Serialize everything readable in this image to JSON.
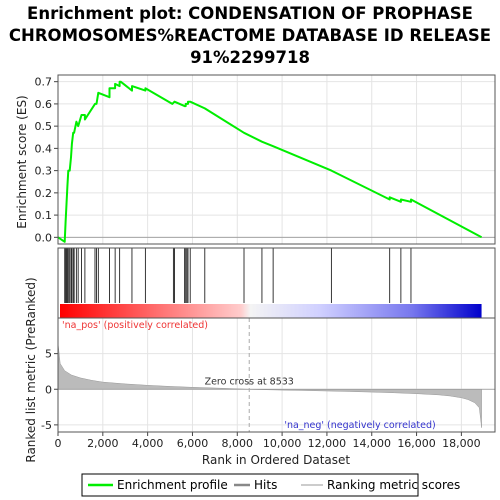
{
  "chart_data": {
    "type": "line",
    "title_lines": [
      "Enrichment plot: CONDENSATION OF PROPHASE",
      "CHROMOSOMES%REACTOME DATABASE ID RELEASE",
      "91%2299718"
    ],
    "ylabel_es": "Enrichment score (ES)",
    "ylabel_rank": "Ranked list metric (PreRanked)",
    "xlabel": "Rank in Ordered Dataset",
    "xlim": [
      0,
      19500
    ],
    "ylim_es": [
      -0.03,
      0.73
    ],
    "ylim_rank": [
      -6,
      10
    ],
    "x_ticks": [
      0,
      2000,
      4000,
      6000,
      8000,
      10000,
      12000,
      14000,
      16000,
      18000
    ],
    "x_tick_labels": [
      "0",
      "2,000",
      "4,000",
      "6,000",
      "8,000",
      "10,000",
      "12,000",
      "14,000",
      "16,000",
      "18,000"
    ],
    "es_ticks": [
      0.0,
      0.1,
      0.2,
      0.3,
      0.4,
      0.5,
      0.6,
      0.7
    ],
    "es_tick_labels": [
      "0.0",
      "0.1",
      "0.2",
      "0.3",
      "0.4",
      "0.5",
      "0.6",
      "0.7"
    ],
    "rank_ticks": [
      -5,
      0,
      5
    ],
    "rank_tick_labels": [
      "-5",
      "0",
      "5"
    ],
    "series": [
      {
        "name": "Enrichment profile",
        "color": "#00ee00",
        "x": [
          0,
          300,
          340,
          340,
          380,
          380,
          420,
          420,
          460,
          460,
          520,
          520,
          580,
          580,
          620,
          620,
          680,
          680,
          720,
          720,
          820,
          820,
          900,
          900,
          1050,
          1050,
          1200,
          1200,
          1650,
          1650,
          1720,
          1720,
          1800,
          1800,
          2300,
          2300,
          2550,
          2550,
          2750,
          2750,
          2800,
          3300,
          3300,
          3900,
          3900,
          5100,
          5200,
          5200,
          5650,
          5700,
          5700,
          5750,
          5750,
          5800,
          5800,
          5900,
          5900,
          6550,
          6550,
          8300,
          8300,
          9100,
          9100,
          9600,
          9600,
          12200,
          12200,
          14800,
          14800,
          15300,
          15300,
          15750,
          15750,
          18900
        ],
        "y": [
          0.0,
          -0.02,
          0.07,
          0.07,
          0.15,
          0.15,
          0.23,
          0.23,
          0.3,
          0.3,
          0.3,
          0.3,
          0.36,
          0.36,
          0.42,
          0.42,
          0.47,
          0.47,
          0.47,
          0.47,
          0.52,
          0.52,
          0.5,
          0.5,
          0.55,
          0.55,
          0.55,
          0.53,
          0.6,
          0.6,
          0.6,
          0.6,
          0.65,
          0.65,
          0.63,
          0.67,
          0.67,
          0.69,
          0.68,
          0.7,
          0.7,
          0.66,
          0.68,
          0.66,
          0.67,
          0.6,
          0.61,
          0.61,
          0.59,
          0.59,
          0.6,
          0.6,
          0.6,
          0.6,
          0.61,
          0.61,
          0.61,
          0.58,
          0.58,
          0.47,
          0.47,
          0.43,
          0.43,
          0.41,
          0.41,
          0.3,
          0.3,
          0.17,
          0.18,
          0.16,
          0.17,
          0.16,
          0.17,
          0.0
        ]
      }
    ],
    "hits": [
      300,
      340,
      380,
      420,
      460,
      520,
      580,
      620,
      680,
      720,
      820,
      900,
      1050,
      1200,
      1650,
      1720,
      1800,
      2300,
      2550,
      2750,
      3300,
      3900,
      5150,
      5200,
      5650,
      5700,
      5750,
      5800,
      5900,
      6550,
      8300,
      9100,
      9600,
      12200,
      14800,
      15300,
      15750
    ],
    "ranked_metric": {
      "x": [
        0,
        100,
        300,
        600,
        1000,
        1500,
        2000,
        3000,
        4000,
        5000,
        6000,
        7000,
        8000,
        8533,
        9000,
        10000,
        11000,
        12000,
        13000,
        14000,
        15000,
        16000,
        17000,
        17500,
        18000,
        18300,
        18600,
        18800,
        18900
      ],
      "y": [
        6.5,
        3.6,
        2.6,
        2.0,
        1.6,
        1.25,
        1.0,
        0.75,
        0.55,
        0.4,
        0.28,
        0.17,
        0.07,
        0.0,
        -0.05,
        -0.12,
        -0.18,
        -0.25,
        -0.32,
        -0.4,
        -0.5,
        -0.62,
        -0.8,
        -0.95,
        -1.2,
        -1.45,
        -1.9,
        -2.6,
        -5.4
      ],
      "fill": "#bbbbbb"
    },
    "zero_cross_label": "Zero cross at 8533",
    "zero_cross_x": 8533,
    "pos_label": "'na_pos' (positively correlated)",
    "neg_label": "'na_neg' (negatively correlated)",
    "pos_color": "#ff0000",
    "neg_color": "#0000cc",
    "legend": [
      "Enrichment profile",
      "Hits",
      "Ranking metric scores"
    ],
    "grid": true
  }
}
